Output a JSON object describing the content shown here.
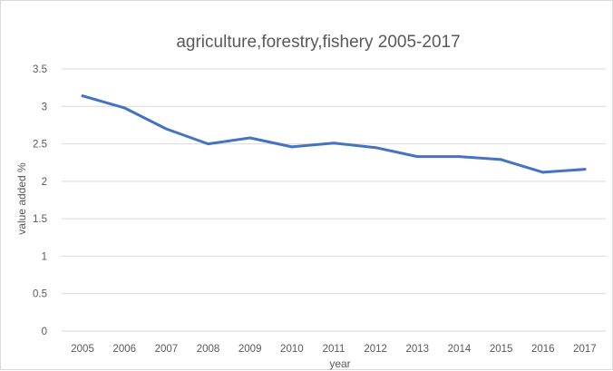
{
  "chart_data": {
    "type": "line",
    "title": "agriculture,forestry,fishery 2005-2017",
    "xlabel": "year",
    "ylabel": "value added %",
    "categories": [
      "2005",
      "2006",
      "2007",
      "2008",
      "2009",
      "2010",
      "2011",
      "2012",
      "2013",
      "2014",
      "2015",
      "2016",
      "2017"
    ],
    "series": [
      {
        "values": [
          3.14,
          2.98,
          2.7,
          2.5,
          2.58,
          2.46,
          2.51,
          2.45,
          2.33,
          2.33,
          2.29,
          2.12,
          2.16
        ]
      }
    ],
    "ylim": [
      0,
      3.5
    ],
    "yticks": [
      "0",
      "0.5",
      "1",
      "1.5",
      "2",
      "2.5",
      "3",
      "3.5"
    ],
    "grid": true,
    "legend": "none",
    "colors": {
      "series": "#4472c4",
      "grid": "#d9d9d9",
      "text": "#595959"
    }
  }
}
